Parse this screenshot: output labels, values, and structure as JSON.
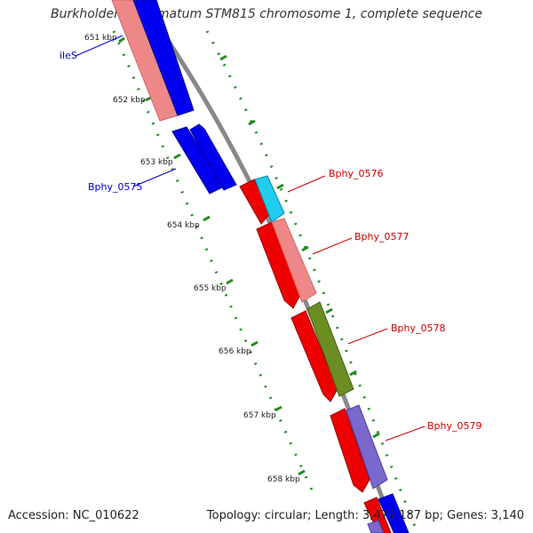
{
  "title": "Burkholderia phymatum STM815 chromosome 1, complete sequence",
  "footer": {
    "accession": "Accession: NC_010622",
    "summary": "Topology: circular; Length: 3,479,187 bp; Genes: 3,140"
  },
  "ticks": [
    "651 kbp",
    "652 kbp",
    "653 kbp",
    "654 kbp",
    "655 kbp",
    "656 kbp",
    "657 kbp",
    "658 kbp"
  ],
  "gene_labels": [
    {
      "text": "ileS",
      "color": "#0000cc"
    },
    {
      "text": "Bphy_0575",
      "color": "#0000cc"
    },
    {
      "text": "Bphy_0576",
      "color": "#cc0000"
    },
    {
      "text": "Bphy_0577",
      "color": "#cc0000"
    },
    {
      "text": "Bphy_0578",
      "color": "#cc0000"
    },
    {
      "text": "Bphy_0579",
      "color": "#cc0000"
    }
  ],
  "colors": {
    "reverse_strand_cds": "#0000ee",
    "forward_strand_cds": "#ee0000",
    "light_red_feature": "#ee8888",
    "light_blue_feature": "#22ccee",
    "olive_feature": "#6b8e23",
    "lavender_feature": "#7b68cc",
    "backbone": "#888888",
    "tick_marks": "#228b22"
  }
}
